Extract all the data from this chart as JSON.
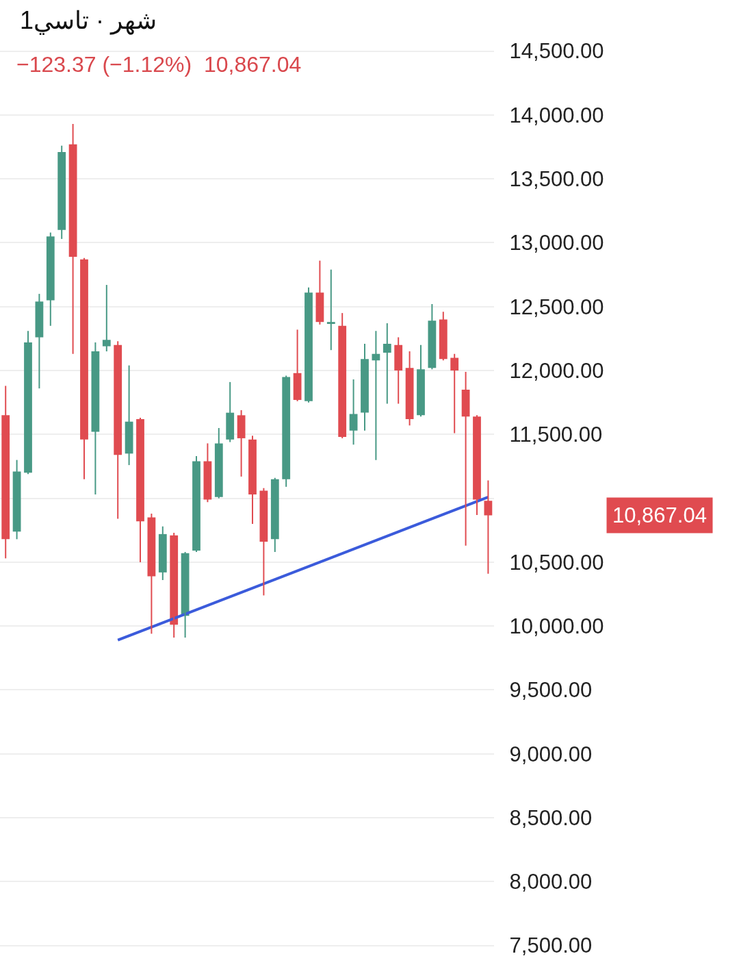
{
  "chart_data": {
    "type": "candlestick",
    "title": "1شهر · تاسي",
    "subtitle": "−123.37 (−1.12%)  10,867.04",
    "categories": [
      null,
      null,
      null,
      null,
      null,
      null,
      null,
      null,
      null,
      null,
      null,
      null,
      null,
      null,
      null,
      null,
      null,
      null,
      null,
      null,
      null,
      null,
      null,
      null,
      null,
      null,
      null,
      null,
      null,
      null,
      null,
      null,
      null,
      null,
      null,
      null,
      null,
      null,
      null,
      null,
      null,
      null,
      null,
      null
    ],
    "ohlc": [
      [
        11650,
        11880,
        10530,
        10680
      ],
      [
        10740,
        11300,
        10680,
        11210
      ],
      [
        11200,
        12310,
        11190,
        12220
      ],
      [
        12260,
        12600,
        11860,
        12540
      ],
      [
        12550,
        13080,
        12350,
        13050
      ],
      [
        13100,
        13760,
        13030,
        13710
      ],
      [
        13770,
        13930,
        12130,
        12890
      ],
      [
        12870,
        12880,
        11150,
        11460
      ],
      [
        11520,
        12220,
        11030,
        12150
      ],
      [
        12190,
        12670,
        12150,
        12240
      ],
      [
        12200,
        12230,
        10840,
        11340
      ],
      [
        11350,
        12040,
        11260,
        11600
      ],
      [
        11620,
        11630,
        10500,
        10820
      ],
      [
        10850,
        10880,
        9940,
        10390
      ],
      [
        10420,
        10780,
        10360,
        10720
      ],
      [
        10710,
        10730,
        9910,
        10010
      ],
      [
        10080,
        10580,
        9910,
        10570
      ],
      [
        10590,
        11330,
        10580,
        11290
      ],
      [
        11290,
        11430,
        10970,
        10990
      ],
      [
        11010,
        11550,
        11000,
        11430
      ],
      [
        11460,
        11910,
        11440,
        11670
      ],
      [
        11650,
        11690,
        11170,
        11470
      ],
      [
        11460,
        11490,
        10800,
        11030
      ],
      [
        11060,
        11080,
        10240,
        10660
      ],
      [
        10680,
        11160,
        10580,
        11150
      ],
      [
        11150,
        11960,
        11090,
        11950
      ],
      [
        11980,
        12320,
        11760,
        11770
      ],
      [
        11760,
        12650,
        11750,
        12610
      ],
      [
        12610,
        12860,
        12360,
        12380
      ],
      [
        12370,
        12790,
        12160,
        12380
      ],
      [
        12350,
        12450,
        11470,
        11480
      ],
      [
        11530,
        11930,
        11420,
        11660
      ],
      [
        11670,
        12210,
        11530,
        12090
      ],
      [
        12080,
        12310,
        11300,
        12130
      ],
      [
        12140,
        12370,
        11740,
        12210
      ],
      [
        12200,
        12260,
        11740,
        12000
      ],
      [
        12020,
        12150,
        11570,
        11620
      ],
      [
        11650,
        12200,
        11640,
        12010
      ],
      [
        12020,
        12520,
        12010,
        12390
      ],
      [
        12400,
        12460,
        12080,
        12090
      ],
      [
        12100,
        12130,
        11510,
        12000
      ],
      [
        11850,
        11990,
        10630,
        11640
      ],
      [
        11640,
        11650,
        10870,
        10990.41
      ],
      [
        10980,
        11140,
        10410,
        10867.04
      ]
    ],
    "colors": [
      "#e04b50",
      "#489985",
      "#489985",
      "#489985",
      "#489985",
      "#489985",
      "#e04b50",
      "#e04b50",
      "#489985",
      "#489985",
      "#e04b50",
      "#489985",
      "#e04b50",
      "#e04b50",
      "#489985",
      "#e04b50",
      "#489985",
      "#489985",
      "#e04b50",
      "#489985",
      "#489985",
      "#e04b50",
      "#e04b50",
      "#e04b50",
      "#489985",
      "#489985",
      "#e04b50",
      "#489985",
      "#e04b50",
      "#489985",
      "#e04b50",
      "#489985",
      "#489985",
      "#489985",
      "#489985",
      "#e04b50",
      "#e04b50",
      "#489985",
      "#489985",
      "#e04b50",
      "#e04b50",
      "#e04b50",
      "#e04b50",
      "#e04b50"
    ],
    "series": [
      {
        "type": "line",
        "values": [
          null,
          null,
          null,
          null,
          null,
          null,
          null,
          null,
          null,
          null,
          9890,
          null,
          null,
          null,
          null,
          null,
          null,
          null,
          null,
          null,
          null,
          null,
          null,
          null,
          null,
          null,
          null,
          null,
          null,
          null,
          null,
          null,
          null,
          null,
          null,
          null,
          null,
          null,
          null,
          null,
          null,
          null,
          null,
          11010
        ],
        "color": "#3b5bdb"
      }
    ],
    "annotations": [
      "10,867.04"
    ],
    "ylim": [
      7230,
      14900
    ],
    "yticks": [
      {
        "value": 7500,
        "label": "7,500.00"
      },
      {
        "value": 8000,
        "label": "8,000.00"
      },
      {
        "value": 8500,
        "label": "8,500.00"
      },
      {
        "value": 9000,
        "label": "9,000.00"
      },
      {
        "value": 9500,
        "label": "9,500.00"
      },
      {
        "value": 10000,
        "label": "10,000.00"
      },
      {
        "value": 10500,
        "label": "10,500.00"
      },
      {
        "value": 11000,
        "label": null
      },
      {
        "value": 11500,
        "label": "11,500.00"
      },
      {
        "value": 12000,
        "label": "12,000.00"
      },
      {
        "value": 12500,
        "label": "12,500.00"
      },
      {
        "value": 13000,
        "label": "13,000.00"
      },
      {
        "value": 13500,
        "label": "13,500.00"
      },
      {
        "value": 14000,
        "label": "14,000.00"
      },
      {
        "value": 14500,
        "label": "14,500.00"
      }
    ],
    "grid": "y",
    "tick_labels": "y"
  }
}
